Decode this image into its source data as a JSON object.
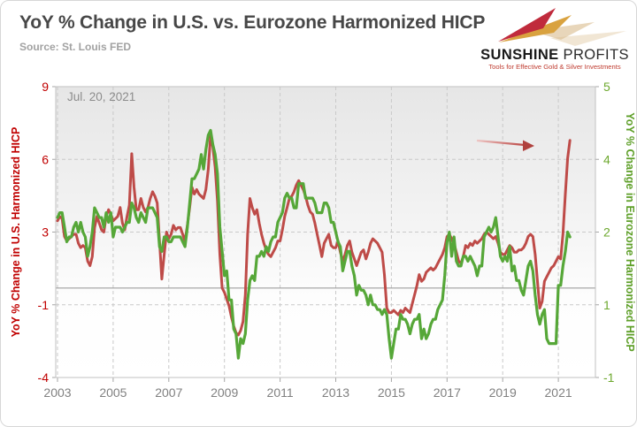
{
  "header": {
    "title": "YoY % Change in U.S. vs. Eurozone Harmonized HICP",
    "source": "Source: St. Louis FED",
    "logo": {
      "brand_bold": "SUNSHINE",
      "brand_light": " PROFITS",
      "tagline": "Tools for Effective Gold & Silver Investments"
    }
  },
  "colors": {
    "title_text": "#474747",
    "source_text": "#a2a2a2",
    "us_line": "#be4b48",
    "eurozone_line": "#56a738",
    "left_axis_text": "#c00000",
    "right_axis_text": "#6da82e",
    "x_axis_text": "#808080",
    "gridline": "#c9c9c9",
    "zero_line": "#9e9e9e",
    "plot_border": "#c2c2c2",
    "annotation_text": "#8c8c8c",
    "annotation_arrow": "#be4b48",
    "logo_red": "#c02b3c",
    "logo_gold": "#d9a23f"
  },
  "chart_data": {
    "type": "line",
    "title": "YoY % Change in U.S. vs. Eurozone Harmonized HICP",
    "subtitle": "Source: St. Louis FED",
    "grid": true,
    "legend": "none",
    "annotations": {
      "date_label": "Jul. 20, 2021",
      "arrow_note": "red arrow pointing at the mid-2021 U.S. inflation spike"
    },
    "x_axis": {
      "tick_labels": [
        "2003",
        "2005",
        "2007",
        "2009",
        "2011",
        "2013",
        "2015",
        "2017",
        "2019",
        "2021"
      ],
      "start_month": "2003-01",
      "end_month": "2021-06",
      "months": 222
    },
    "left_axis": {
      "title": "YoY % Change in U.S. Harmonized HICP",
      "min": -4,
      "max": 9,
      "tick_labels": [
        "9",
        "6",
        "3",
        "-1",
        "-4"
      ]
    },
    "right_axis": {
      "title": "YoY % Change in Eurozone Harmonized HICP",
      "min": -1,
      "max": 5,
      "tick_labels": [
        "5",
        "4",
        "2",
        "1",
        "-1"
      ]
    },
    "series": [
      {
        "name": "U.S. Harmonized HICP YoY %",
        "axis": "left",
        "color": "#be4b48",
        "width": 3,
        "values": [
          3.0,
          3.2,
          3.1,
          2.3,
          2.1,
          2.2,
          2.3,
          2.4,
          2.4,
          2.0,
          1.8,
          1.9,
          1.8,
          1.2,
          1.0,
          1.4,
          2.7,
          3.2,
          2.9,
          2.6,
          2.5,
          3.2,
          3.5,
          3.3,
          3.0,
          3.1,
          3.2,
          3.6,
          2.9,
          2.6,
          3.2,
          3.7,
          6.0,
          4.5,
          3.5,
          3.5,
          4.0,
          3.6,
          3.4,
          3.6,
          4.0,
          4.3,
          4.1,
          3.8,
          2.1,
          0.4,
          1.5,
          2.5,
          2.2,
          2.4,
          2.8,
          2.6,
          2.7,
          2.7,
          2.4,
          2.1,
          2.8,
          3.6,
          4.5,
          4.2,
          4.4,
          4.2,
          4.1,
          4.0,
          4.4,
          5.3,
          6.8,
          6.3,
          5.4,
          3.9,
          1.5,
          0.0,
          -0.2,
          -0.5,
          -0.8,
          -1.3,
          -1.7,
          -2.0,
          -2.1,
          -1.9,
          -1.5,
          -0.3,
          2.4,
          4.0,
          3.6,
          3.3,
          3.5,
          2.9,
          2.4,
          2.0,
          1.7,
          1.5,
          1.4,
          1.6,
          1.8,
          2.1,
          2.1,
          2.6,
          3.2,
          3.6,
          4.0,
          4.1,
          4.3,
          4.6,
          4.8,
          4.6,
          4.4,
          4.1,
          3.7,
          3.4,
          3.3,
          2.9,
          2.4,
          1.9,
          1.4,
          2.0,
          2.2,
          2.4,
          1.9,
          1.8,
          1.8,
          2.1,
          1.6,
          1.2,
          1.5,
          1.9,
          2.1,
          1.6,
          1.3,
          1.0,
          1.3,
          1.6,
          1.7,
          1.3,
          1.6,
          2.0,
          2.2,
          2.1,
          2.0,
          1.8,
          1.6,
          0.6,
          -0.9,
          -1.1,
          -1.1,
          -1.0,
          -1.1,
          -1.2,
          -1.0,
          -1.1,
          -0.9,
          -1.0,
          -1.1,
          -0.7,
          -0.3,
          0.1,
          0.6,
          0.3,
          0.4,
          0.7,
          0.8,
          0.9,
          0.8,
          0.9,
          1.1,
          1.3,
          1.5,
          1.8,
          2.3,
          2.4,
          2.2,
          2.0,
          1.6,
          1.2,
          1.1,
          1.4,
          1.9,
          1.8,
          2.0,
          1.9,
          2.1,
          2.0,
          2.1,
          2.2,
          2.4,
          2.5,
          2.4,
          2.3,
          2.2,
          2.3,
          2.0,
          1.6,
          1.5,
          1.5,
          1.7,
          1.9,
          1.8,
          1.6,
          1.6,
          1.7,
          1.7,
          1.8,
          2.0,
          2.3,
          2.4,
          2.3,
          1.5,
          0.3,
          -0.9,
          -0.6,
          0.3,
          0.5,
          0.7,
          0.9,
          1.0,
          1.2,
          1.4,
          1.3,
          2.4,
          4.2,
          5.8,
          6.6
        ]
      },
      {
        "name": "Eurozone Harmonized HICP YoY %",
        "axis": "right",
        "color": "#56a738",
        "width": 3.2,
        "values": [
          2.3,
          2.4,
          2.4,
          2.1,
          1.8,
          1.9,
          1.9,
          2.1,
          2.2,
          2.0,
          2.2,
          2.0,
          1.9,
          1.5,
          1.7,
          2.0,
          2.5,
          2.4,
          2.3,
          2.3,
          2.1,
          2.4,
          2.2,
          2.4,
          1.9,
          2.1,
          2.1,
          2.1,
          2.0,
          2.1,
          2.2,
          2.2,
          2.6,
          2.5,
          2.3,
          2.2,
          2.4,
          2.3,
          2.2,
          2.5,
          2.5,
          2.5,
          2.4,
          2.3,
          1.7,
          1.6,
          1.9,
          1.9,
          1.8,
          1.8,
          1.9,
          1.9,
          1.9,
          1.9,
          1.8,
          1.7,
          2.1,
          2.6,
          3.1,
          3.1,
          3.2,
          3.3,
          3.6,
          3.3,
          3.7,
          4.0,
          4.1,
          3.8,
          3.6,
          3.2,
          2.1,
          1.6,
          1.1,
          1.2,
          0.6,
          0.6,
          0.0,
          -0.1,
          -0.6,
          -0.2,
          -0.3,
          -0.1,
          0.6,
          1.0,
          1.1,
          1.0,
          1.5,
          1.5,
          1.6,
          1.5,
          1.7,
          1.6,
          1.8,
          1.9,
          1.9,
          2.2,
          2.3,
          2.4,
          2.7,
          2.8,
          2.7,
          2.7,
          2.5,
          2.5,
          3.0,
          3.0,
          3.0,
          2.7,
          2.7,
          2.7,
          2.7,
          2.6,
          2.4,
          2.4,
          2.4,
          2.6,
          2.6,
          2.5,
          2.2,
          2.2,
          2.0,
          1.8,
          1.7,
          1.2,
          1.4,
          1.6,
          1.6,
          1.3,
          1.1,
          0.7,
          0.9,
          0.8,
          0.8,
          0.7,
          0.5,
          0.7,
          0.5,
          0.5,
          0.4,
          0.4,
          0.3,
          0.4,
          0.3,
          -0.2,
          -0.6,
          -0.3,
          0.0,
          0.0,
          0.3,
          0.2,
          0.2,
          0.1,
          -0.1,
          0.1,
          0.2,
          0.2,
          0.3,
          -0.2,
          0.0,
          -0.2,
          -0.1,
          0.1,
          0.2,
          0.2,
          0.4,
          0.5,
          0.6,
          1.1,
          1.8,
          2.0,
          1.5,
          1.9,
          1.4,
          1.3,
          1.3,
          1.5,
          1.5,
          1.4,
          1.5,
          1.4,
          1.3,
          1.1,
          1.3,
          1.3,
          1.9,
          2.0,
          2.1,
          2.0,
          2.1,
          2.3,
          1.9,
          1.5,
          1.4,
          1.5,
          1.4,
          1.7,
          1.2,
          1.3,
          1.0,
          1.0,
          0.8,
          0.7,
          1.0,
          1.3,
          1.4,
          1.2,
          0.7,
          0.3,
          0.1,
          0.3,
          0.4,
          -0.2,
          -0.3,
          -0.3,
          -0.3,
          -0.3,
          0.9,
          0.9,
          1.3,
          1.6,
          2.0,
          1.9
        ]
      }
    ]
  }
}
